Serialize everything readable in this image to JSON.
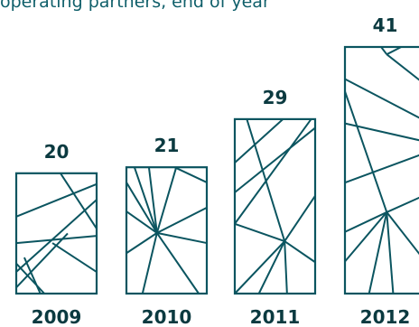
{
  "caption": "operating partners, end of year",
  "colors": {
    "line": "#0b5560",
    "text": "#0b3a40",
    "caption": "#0f5f6a",
    "background": "#ffffff"
  },
  "chart_data": {
    "type": "bar",
    "categories": [
      "2009",
      "2010",
      "2011",
      "2012"
    ],
    "values": [
      20,
      21,
      29,
      41
    ],
    "value_labels": [
      "20",
      "21",
      "29",
      "41"
    ],
    "title": "",
    "xlabel": "",
    "ylabel": "",
    "ylim": [
      0,
      41
    ],
    "bar_style": "geometric-line-pattern",
    "grid": false,
    "legend": "none"
  }
}
